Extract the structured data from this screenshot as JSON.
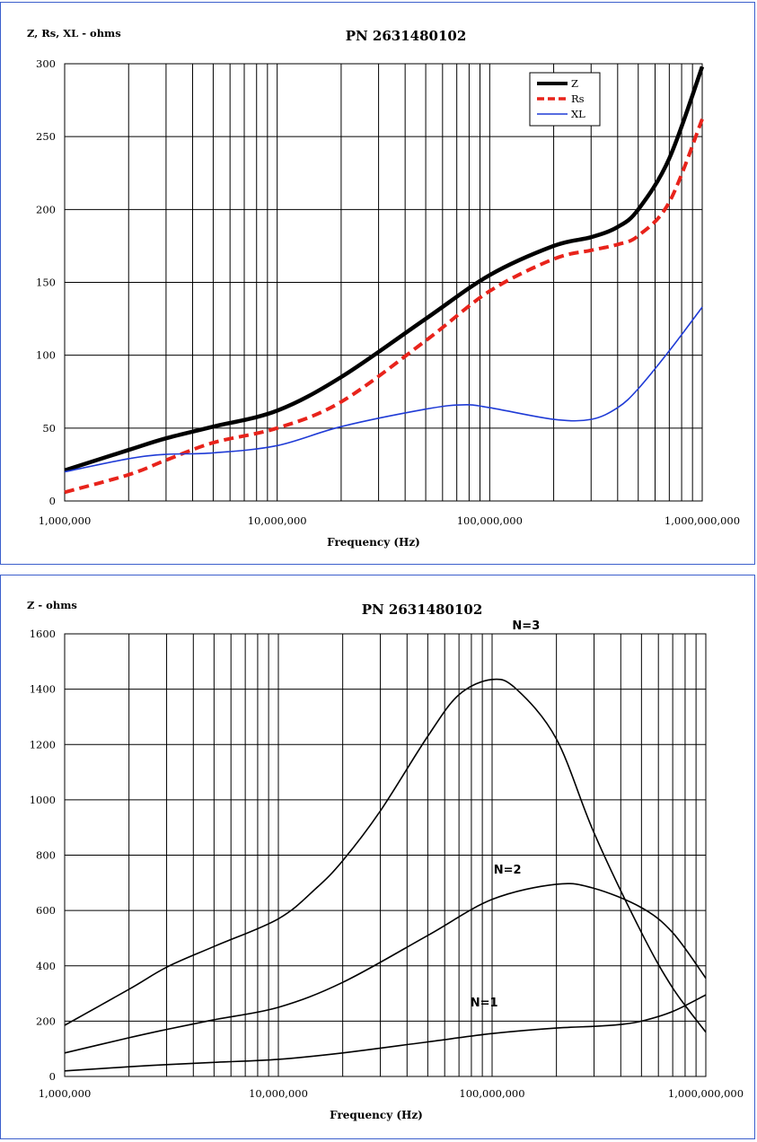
{
  "chart_data": [
    {
      "type": "line",
      "title": "PN 2631480102",
      "ylabel": "Z, Rs, XL - ohms",
      "xlabel": "Frequency (Hz)",
      "xscale": "log",
      "xlim": [
        1000000,
        1000000000
      ],
      "ylim": [
        0,
        300
      ],
      "yticks": [
        0,
        50,
        100,
        150,
        200,
        250,
        300
      ],
      "xtick_labels": [
        "1,000,000",
        "10,000,000",
        "100,000,000",
        "1,000,000,000"
      ],
      "grid": true,
      "legend": "top-right",
      "series": [
        {
          "name": "Z",
          "color": "#000000",
          "style": "solid-thick",
          "x": [
            1000000,
            2000000,
            3000000,
            5000000,
            10000000,
            20000000,
            50000000,
            100000000,
            200000000,
            300000000,
            400000000,
            500000000,
            700000000,
            1000000000
          ],
          "y": [
            21,
            35,
            43,
            51,
            62,
            85,
            125,
            155,
            175,
            181,
            188,
            200,
            235,
            298
          ]
        },
        {
          "name": "Rs",
          "color": "#e8231b",
          "style": "dashed",
          "x": [
            1000000,
            2000000,
            3000000,
            5000000,
            10000000,
            20000000,
            50000000,
            100000000,
            200000000,
            300000000,
            400000000,
            500000000,
            700000000,
            1000000000
          ],
          "y": [
            6,
            18,
            28,
            40,
            50,
            68,
            110,
            144,
            166,
            172,
            176,
            182,
            205,
            262
          ]
        },
        {
          "name": "XL",
          "color": "#1f3bd6",
          "style": "solid-thin",
          "x": [
            1000000,
            2000000,
            3000000,
            5000000,
            10000000,
            20000000,
            50000000,
            75000000,
            100000000,
            200000000,
            300000000,
            400000000,
            500000000,
            700000000,
            1000000000
          ],
          "y": [
            20,
            29,
            32,
            33,
            38,
            51,
            63,
            66,
            64,
            56,
            56,
            64,
            77,
            103,
            133
          ]
        }
      ]
    },
    {
      "type": "line",
      "title": "PN 2631480102",
      "ylabel": "Z - ohms",
      "xlabel": "Frequency (Hz)",
      "xscale": "log",
      "xlim": [
        1000000,
        1000000000
      ],
      "ylim": [
        0,
        1600
      ],
      "yticks": [
        0,
        200,
        400,
        600,
        800,
        1000,
        1200,
        1400,
        1600
      ],
      "xtick_labels": [
        "1,000,000",
        "10,000,000",
        "100,000,000",
        "1,000,000,000"
      ],
      "grid": true,
      "series": [
        {
          "name": "N=3",
          "color": "#000000",
          "x": [
            1000000,
            2000000,
            3000000,
            5000000,
            10000000,
            15000000,
            20000000,
            30000000,
            50000000,
            70000000,
            100000000,
            130000000,
            200000000,
            300000000,
            500000000,
            700000000,
            1000000000
          ],
          "y": [
            185,
            315,
            395,
            470,
            570,
            680,
            780,
            960,
            1230,
            1380,
            1435,
            1400,
            1220,
            880,
            520,
            320,
            160
          ]
        },
        {
          "name": "N=2",
          "color": "#000000",
          "x": [
            1000000,
            2000000,
            3000000,
            5000000,
            10000000,
            20000000,
            50000000,
            100000000,
            200000000,
            300000000,
            500000000,
            700000000,
            1000000000
          ],
          "y": [
            85,
            140,
            170,
            205,
            250,
            340,
            510,
            640,
            695,
            680,
            610,
            520,
            355
          ]
        },
        {
          "name": "N=1",
          "color": "#000000",
          "x": [
            1000000,
            2000000,
            3000000,
            5000000,
            10000000,
            20000000,
            50000000,
            100000000,
            200000000,
            300000000,
            400000000,
            500000000,
            700000000,
            1000000000
          ],
          "y": [
            20,
            35,
            43,
            51,
            62,
            85,
            125,
            155,
            175,
            181,
            188,
            200,
            235,
            295
          ]
        }
      ]
    }
  ]
}
